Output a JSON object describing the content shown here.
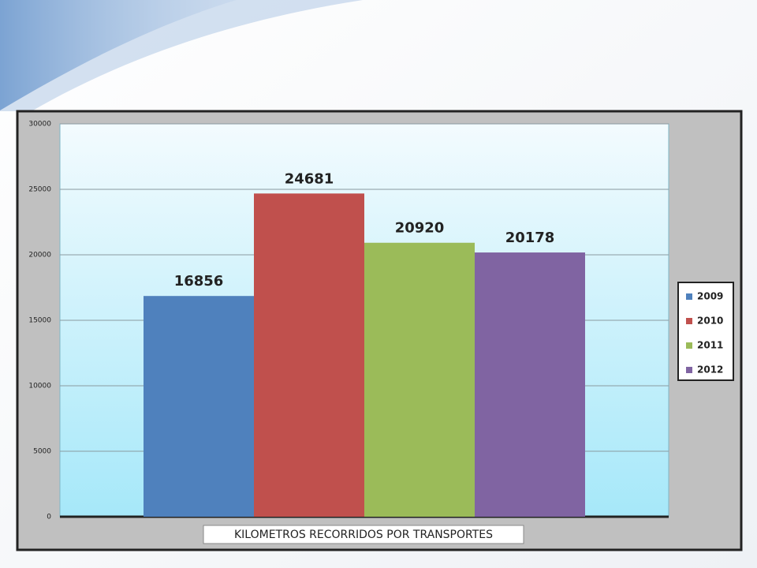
{
  "chart_data": {
    "type": "bar",
    "x_label": "KILOMETROS RECORRIDOS POR TRANSPORTES",
    "series": [
      {
        "name": "2009",
        "color": "#4f81bd",
        "values": [
          16856
        ]
      },
      {
        "name": "2010",
        "color": "#c0504d",
        "values": [
          24681
        ]
      },
      {
        "name": "2011",
        "color": "#9bbb59",
        "values": [
          20920
        ]
      },
      {
        "name": "2012",
        "color": "#8064a2",
        "values": [
          20178
        ]
      }
    ],
    "ylim": [
      0,
      30000
    ],
    "yticks": [
      0,
      5000,
      10000,
      15000,
      20000,
      25000,
      30000
    ],
    "grid": true,
    "legend": "right"
  }
}
